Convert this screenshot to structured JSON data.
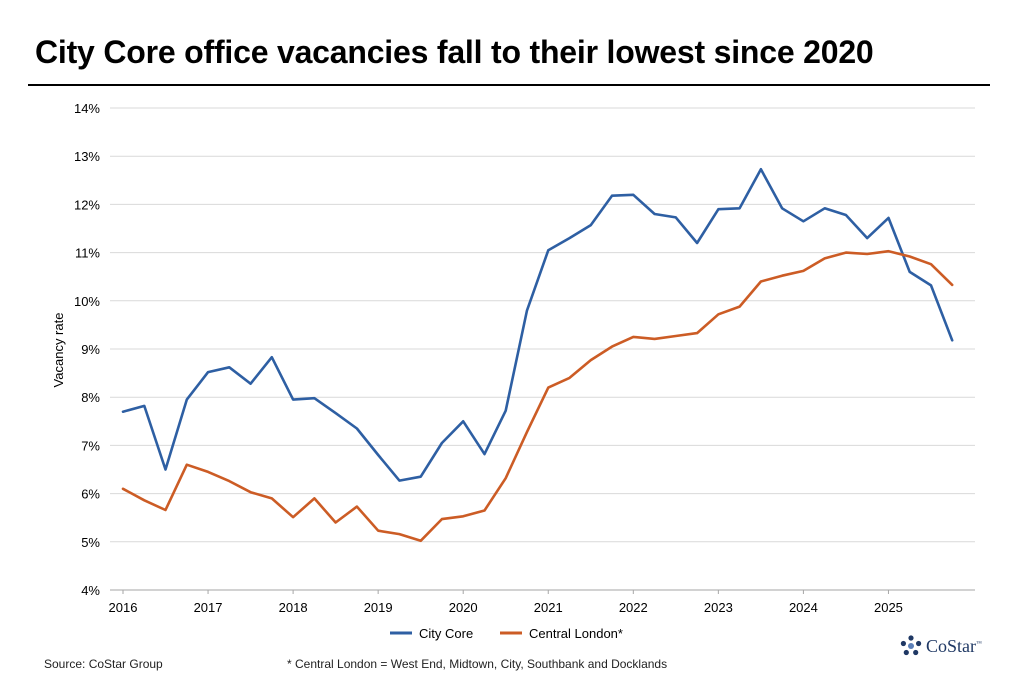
{
  "title": "City Core office vacancies fall to their lowest since 2020",
  "source": "Source: CoStar Group",
  "footnote": "* Central London = West End, Midtown, City, Southbank and Docklands",
  "logo": {
    "name": "CoStar",
    "tm": "™"
  },
  "colors": {
    "city_core": "#2e5fa3",
    "central_london": "#cc5c25",
    "grid": "#d9d9d9",
    "text": "#000000"
  },
  "chart_data": {
    "type": "line",
    "title": "City Core office vacancies fall to their lowest since 2020",
    "xlabel": "",
    "ylabel": "Vacancy rate",
    "ylim": [
      4,
      14
    ],
    "yticks": [
      4,
      5,
      6,
      7,
      8,
      9,
      10,
      11,
      12,
      13,
      14
    ],
    "ytick_labels": [
      "4%",
      "5%",
      "6%",
      "7%",
      "8%",
      "9%",
      "10%",
      "11%",
      "12%",
      "13%",
      "14%"
    ],
    "xlim": [
      2016,
      2025.9
    ],
    "xtick_labels": [
      "2016",
      "2017",
      "2018",
      "2019",
      "2020",
      "2021",
      "2022",
      "2023",
      "2024",
      "2025"
    ],
    "grid": true,
    "legend": "bottom-center",
    "x": [
      2016.0,
      2016.25,
      2016.5,
      2016.75,
      2017.0,
      2017.25,
      2017.5,
      2017.75,
      2018.0,
      2018.25,
      2018.5,
      2018.75,
      2019.0,
      2019.25,
      2019.5,
      2019.75,
      2020.0,
      2020.25,
      2020.5,
      2020.75,
      2021.0,
      2021.25,
      2021.5,
      2021.75,
      2022.0,
      2022.25,
      2022.5,
      2022.75,
      2023.0,
      2023.25,
      2023.5,
      2023.75,
      2024.0,
      2024.25,
      2024.5,
      2024.75,
      2025.0,
      2025.25,
      2025.5,
      2025.75
    ],
    "series": [
      {
        "name": "City Core",
        "color": "#2e5fa3",
        "values": [
          7.7,
          7.82,
          6.5,
          7.95,
          8.52,
          8.62,
          8.28,
          8.83,
          7.95,
          7.98,
          7.67,
          7.35,
          6.8,
          6.27,
          6.35,
          7.05,
          7.5,
          6.82,
          7.72,
          9.8,
          11.05,
          11.3,
          11.57,
          12.18,
          12.2,
          11.8,
          11.73,
          11.2,
          11.9,
          11.92,
          12.73,
          11.92,
          11.65,
          11.92,
          11.78,
          11.3,
          11.72,
          10.6,
          10.32,
          9.18
        ]
      },
      {
        "name": "Central London*",
        "color": "#cc5c25",
        "values": [
          6.1,
          5.86,
          5.66,
          6.6,
          6.45,
          6.26,
          6.03,
          5.9,
          5.51,
          5.9,
          5.4,
          5.73,
          5.23,
          5.16,
          5.02,
          5.47,
          5.53,
          5.65,
          6.32,
          7.28,
          8.2,
          8.4,
          8.77,
          9.05,
          9.25,
          9.21,
          9.27,
          9.33,
          9.72,
          9.88,
          10.4,
          10.52,
          10.62,
          10.88,
          11.0,
          10.97,
          11.03,
          10.92,
          10.76,
          10.33
        ]
      }
    ]
  }
}
